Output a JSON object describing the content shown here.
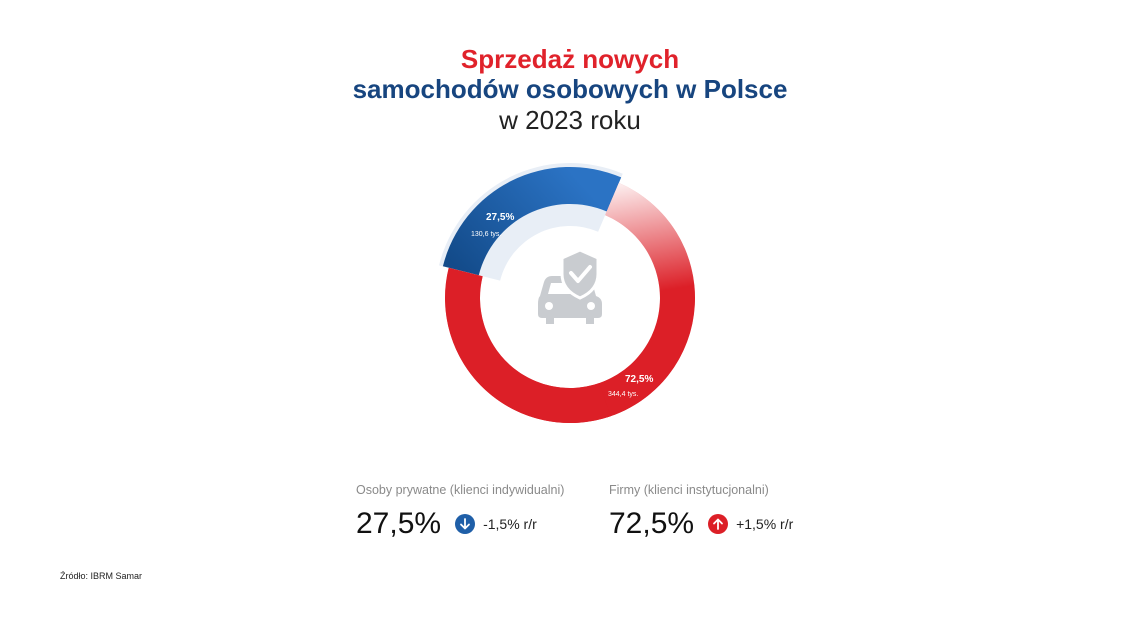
{
  "title": {
    "line1": "Sprzedaż nowych",
    "line2": "samochodów osobowych w Polsce",
    "line3": "w 2023 roku"
  },
  "chart_data": {
    "type": "pie",
    "variant": "donut",
    "center_icon": "car-shield-check-icon",
    "slices": [
      {
        "pct_label": "27,5%",
        "value": 27.5,
        "abs_label": "130,6 tys.",
        "abs_value": 130.6,
        "color": "#1f5fa8",
        "highlighted": true
      },
      {
        "pct_label": "72,5%",
        "value": 72.5,
        "abs_label": "344,4 tys.",
        "abs_value": 344.4,
        "color": "#dc1f27"
      }
    ]
  },
  "stats": [
    {
      "caption": "Osoby prywatne (klienci indywidualni)",
      "value": "27,5%",
      "change": "-1,5% r/r",
      "direction": "down",
      "badge_color": "#1f5fa8"
    },
    {
      "caption": "Firmy (klienci instytucjonalni)",
      "value": "72,5%",
      "change": "+1,5% r/r",
      "direction": "up",
      "badge_color": "#dc1f27"
    }
  ],
  "source": "Źródło: IBRM Samar"
}
